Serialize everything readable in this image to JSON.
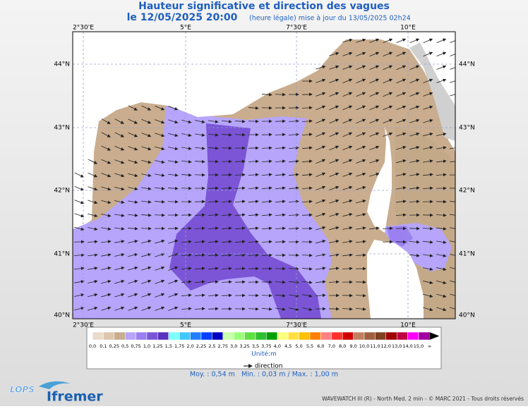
{
  "header": {
    "title": "Hauteur significative et direction des vagues",
    "date": "le 12/05/2025 20:00",
    "update": "(heure légale) mise à jour du 13/05/2025 02h24"
  },
  "map": {
    "lon_labels": [
      "2°30'E",
      "5°E",
      "7°30'E",
      "10°E"
    ],
    "lat_labels": [
      "44°N",
      "43°N",
      "42°N",
      "41°N",
      "40°N"
    ]
  },
  "legend": {
    "colors": [
      "#eadbcc",
      "#dcc6ae",
      "#c9ad8e",
      "#b6a5fb",
      "#9a80f0",
      "#7b55d6",
      "#5a30c0",
      "#80ffff",
      "#40c8ff",
      "#2080ff",
      "#0040ff",
      "#0000c0",
      "#c8ffa8",
      "#98ff78",
      "#60e040",
      "#30c030",
      "#00a000",
      "#ffff80",
      "#ffe040",
      "#ffc000",
      "#ff8000",
      "#ff8080",
      "#ff3030",
      "#d00000",
      "#c08060",
      "#a06040",
      "#804020",
      "#a00000",
      "#c00040",
      "#ff00ff",
      "#a000a0"
    ],
    "labels": [
      "0,0",
      "0,1",
      "0,25",
      "0,5",
      "0,75",
      "1,0",
      "1,25",
      "1,5",
      "1,75",
      "2,0",
      "2,25",
      "2,5",
      "2,75",
      "3,0",
      "3,25",
      "3,5",
      "3,75",
      "4,0",
      "4,5",
      "5,0",
      "5,5",
      "6,0",
      "7,0",
      "8,0",
      "9,0",
      "10,0",
      "11,0",
      "12,0",
      "13,0",
      "14,0",
      "15,0",
      "∞"
    ],
    "unit": "Unité:m",
    "direction": "direction"
  },
  "stats": "Moy. : 0,54 m   Min. : 0,03 m / Max. : 1,00 m",
  "footer": {
    "credit": "WAVEWATCH III (R) - North Med. 2 min - © MARC 2021 - Tous droits réservés",
    "logo1": "LOPS",
    "logo2": "Ifremer"
  }
}
